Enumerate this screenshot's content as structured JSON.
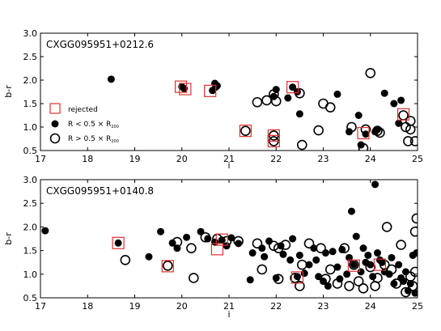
{
  "chart_data": [
    {
      "type": "scatter",
      "title": "CXGG095951+0212.6",
      "xlabel": "i",
      "ylabel": "b-r",
      "xlim": [
        17,
        25
      ],
      "ylim": [
        0.5,
        3.0
      ],
      "xticks": [
        "17",
        "18",
        "19",
        "20",
        "21",
        "22",
        "23",
        "24",
        "25"
      ],
      "yticks": [
        "0.5",
        "1.0",
        "1.5",
        "2.0",
        "2.5",
        "3.0"
      ],
      "legend": {
        "placement": "lower-left",
        "entries": [
          {
            "marker": "open-square-red",
            "label": "rejected"
          },
          {
            "marker": "filled-circle",
            "label_main": "R < 0.5 × R",
            "label_sub": "200"
          },
          {
            "marker": "open-circle",
            "label_main": "R > 0.5 × R",
            "label_sub": "200"
          }
        ]
      },
      "series": [
        {
          "marker": "filled-circle",
          "points": [
            [
              18.5,
              2.02
            ],
            [
              20.0,
              1.86
            ],
            [
              20.05,
              1.82
            ],
            [
              20.65,
              1.78
            ],
            [
              20.7,
              1.93
            ],
            [
              20.75,
              1.88
            ],
            [
              20.72,
              1.85
            ],
            [
              21.95,
              1.65
            ],
            [
              22.0,
              1.8
            ],
            [
              22.25,
              1.62
            ],
            [
              22.35,
              1.85
            ],
            [
              22.45,
              1.75
            ],
            [
              22.5,
              1.28
            ],
            [
              23.3,
              1.7
            ],
            [
              23.55,
              0.9
            ],
            [
              23.75,
              1.25
            ],
            [
              23.9,
              0.85
            ],
            [
              24.3,
              1.72
            ],
            [
              24.5,
              1.5
            ],
            [
              24.65,
              1.57
            ],
            [
              24.1,
              0.9
            ],
            [
              24.15,
              0.95
            ],
            [
              24.6,
              1.08
            ],
            [
              23.8,
              0.62
            ]
          ]
        },
        {
          "marker": "open-circle",
          "points": [
            [
              21.35,
              0.92
            ],
            [
              21.6,
              1.53
            ],
            [
              21.8,
              1.57
            ],
            [
              21.95,
              1.7
            ],
            [
              21.95,
              0.82
            ],
            [
              21.95,
              0.7
            ],
            [
              22.0,
              1.55
            ],
            [
              22.5,
              1.72
            ],
            [
              22.55,
              0.62
            ],
            [
              22.9,
              0.93
            ],
            [
              23.0,
              1.5
            ],
            [
              23.15,
              1.42
            ],
            [
              23.6,
              1.0
            ],
            [
              24.0,
              2.15
            ],
            [
              23.85,
              0.55
            ],
            [
              23.9,
              0.95
            ],
            [
              24.15,
              0.92
            ],
            [
              24.2,
              0.88
            ],
            [
              24.7,
              1.25
            ],
            [
              24.75,
              1.0
            ],
            [
              24.85,
              1.13
            ],
            [
              24.85,
              0.95
            ],
            [
              24.8,
              0.7
            ],
            [
              24.95,
              0.7
            ]
          ]
        },
        {
          "marker": "open-square-red",
          "points": [
            [
              19.98,
              1.86
            ],
            [
              20.07,
              1.81
            ],
            [
              20.6,
              1.77
            ],
            [
              21.35,
              0.92
            ],
            [
              21.95,
              0.82
            ],
            [
              21.95,
              0.7
            ],
            [
              22.35,
              1.85
            ],
            [
              23.85,
              0.87
            ],
            [
              24.7,
              1.27
            ]
          ]
        }
      ]
    },
    {
      "type": "scatter",
      "title": "CXGG095951+0140.8",
      "xlabel": "i",
      "ylabel": "b-r",
      "xlim": [
        17,
        25
      ],
      "ylim": [
        0.5,
        3.0
      ],
      "xticks": [
        "17",
        "18",
        "19",
        "20",
        "21",
        "22",
        "23",
        "24",
        "25"
      ],
      "yticks": [
        "0.5",
        "1.0",
        "1.5",
        "2.0",
        "2.5",
        "3.0"
      ],
      "series": [
        {
          "marker": "filled-circle",
          "points": [
            [
              17.1,
              1.92
            ],
            [
              18.65,
              1.66
            ],
            [
              19.3,
              1.37
            ],
            [
              19.55,
              1.9
            ],
            [
              19.8,
              1.66
            ],
            [
              19.9,
              1.55
            ],
            [
              20.1,
              1.78
            ],
            [
              20.4,
              1.9
            ],
            [
              20.55,
              1.75
            ],
            [
              20.7,
              1.68
            ],
            [
              20.85,
              1.72
            ],
            [
              20.95,
              1.6
            ],
            [
              21.05,
              1.77
            ],
            [
              21.2,
              1.65
            ],
            [
              21.45,
              0.88
            ],
            [
              21.5,
              1.45
            ],
            [
              21.7,
              1.55
            ],
            [
              21.75,
              1.37
            ],
            [
              21.85,
              1.7
            ],
            [
              22.0,
              0.92
            ],
            [
              22.1,
              1.6
            ],
            [
              22.15,
              1.42
            ],
            [
              22.3,
              1.3
            ],
            [
              22.35,
              1.75
            ],
            [
              22.45,
              0.95
            ],
            [
              22.5,
              1.4
            ],
            [
              22.6,
              1.02
            ],
            [
              22.7,
              1.2
            ],
            [
              22.8,
              1.55
            ],
            [
              22.85,
              1.3
            ],
            [
              22.9,
              0.95
            ],
            [
              23.0,
              0.85
            ],
            [
              23.05,
              1.45
            ],
            [
              23.1,
              0.75
            ],
            [
              23.2,
              1.48
            ],
            [
              23.3,
              1.15
            ],
            [
              23.35,
              0.9
            ],
            [
              23.4,
              1.52
            ],
            [
              23.5,
              1.0
            ],
            [
              23.55,
              1.35
            ],
            [
              23.6,
              2.33
            ],
            [
              23.65,
              1.2
            ],
            [
              23.7,
              1.8
            ],
            [
              23.8,
              1.05
            ],
            [
              23.85,
              1.55
            ],
            [
              23.9,
              1.25
            ],
            [
              23.95,
              1.4
            ],
            [
              24.0,
              1.2
            ],
            [
              24.05,
              0.95
            ],
            [
              24.1,
              2.9
            ],
            [
              24.15,
              1.45
            ],
            [
              24.2,
              1.3
            ],
            [
              24.25,
              1.25
            ],
            [
              24.3,
              1.05
            ],
            [
              24.4,
              1.0
            ],
            [
              24.45,
              1.35
            ],
            [
              24.5,
              0.8
            ],
            [
              24.6,
              1.2
            ],
            [
              24.65,
              0.92
            ],
            [
              24.7,
              0.85
            ],
            [
              24.75,
              1.05
            ],
            [
              24.8,
              0.65
            ],
            [
              24.85,
              0.8
            ],
            [
              24.9,
              1.4
            ],
            [
              24.95,
              0.6
            ],
            [
              24.98,
              1.45
            ]
          ]
        },
        {
          "marker": "open-circle",
          "points": [
            [
              18.8,
              1.3
            ],
            [
              19.7,
              1.18
            ],
            [
              19.9,
              1.68
            ],
            [
              20.2,
              1.55
            ],
            [
              20.25,
              0.92
            ],
            [
              20.5,
              1.78
            ],
            [
              20.75,
              1.75
            ],
            [
              20.95,
              1.7
            ],
            [
              21.2,
              1.7
            ],
            [
              21.6,
              1.65
            ],
            [
              21.7,
              1.1
            ],
            [
              21.95,
              1.6
            ],
            [
              22.05,
              1.55
            ],
            [
              22.05,
              0.9
            ],
            [
              22.2,
              1.62
            ],
            [
              22.4,
              0.92
            ],
            [
              22.5,
              0.75
            ],
            [
              22.55,
              1.2
            ],
            [
              22.7,
              1.65
            ],
            [
              22.95,
              1.55
            ],
            [
              23.05,
              0.9
            ],
            [
              23.15,
              1.1
            ],
            [
              23.3,
              0.8
            ],
            [
              23.45,
              1.55
            ],
            [
              23.55,
              0.75
            ],
            [
              23.65,
              1.2
            ],
            [
              23.75,
              0.85
            ],
            [
              23.85,
              0.7
            ],
            [
              24.0,
              1.15
            ],
            [
              24.1,
              0.75
            ],
            [
              24.15,
              0.92
            ],
            [
              24.3,
              1.2
            ],
            [
              24.35,
              2.0
            ],
            [
              24.45,
              1.1
            ],
            [
              24.55,
              0.8
            ],
            [
              24.65,
              1.62
            ],
            [
              24.75,
              0.62
            ],
            [
              24.85,
              0.95
            ],
            [
              24.9,
              0.75
            ],
            [
              24.95,
              1.9
            ],
            [
              24.98,
              2.18
            ],
            [
              24.95,
              1.05
            ]
          ]
        },
        {
          "marker": "open-square-red",
          "points": [
            [
              18.65,
              1.66
            ],
            [
              19.7,
              1.17
            ],
            [
              20.75,
              1.53
            ],
            [
              20.85,
              1.73
            ],
            [
              22.45,
              0.93
            ],
            [
              23.65,
              1.18
            ],
            [
              24.2,
              1.2
            ]
          ]
        }
      ]
    }
  ]
}
